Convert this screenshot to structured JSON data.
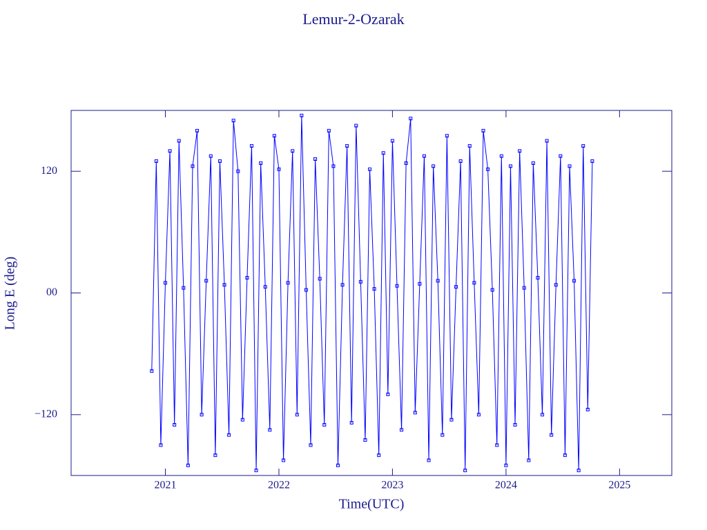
{
  "chart_data": {
    "type": "line",
    "title": "Lemur-2-Ozarak",
    "x_label": "Time(UTC)",
    "y_label": "Long E (deg)",
    "xlim": [
      2020.17,
      2025.46
    ],
    "ylim": [
      -180,
      180
    ],
    "xticks": [
      2021,
      2022,
      2023,
      2024,
      2025
    ],
    "yticks": [
      {
        "value": -120,
        "label": "−120"
      },
      {
        "value": 0,
        "label": "00"
      },
      120
    ],
    "markers": true,
    "series": [
      {
        "color": "#0000ff",
        "x": [
          2020.88,
          2020.92,
          2020.96,
          2021.0,
          2021.04,
          2021.08,
          2021.12,
          2021.16,
          2021.2,
          2021.24,
          2021.28,
          2021.32,
          2021.36,
          2021.4,
          2021.44,
          2021.48,
          2021.52,
          2021.56,
          2021.6,
          2021.64,
          2021.68,
          2021.72,
          2021.76,
          2021.8,
          2021.84,
          2021.88,
          2021.92,
          2021.96,
          2022.0,
          2022.04,
          2022.08,
          2022.12,
          2022.16,
          2022.2,
          2022.24,
          2022.28,
          2022.32,
          2022.36,
          2022.4,
          2022.44,
          2022.48,
          2022.52,
          2022.56,
          2022.6,
          2022.64,
          2022.68,
          2022.72,
          2022.76,
          2022.8,
          2022.84,
          2022.88,
          2022.92,
          2022.96,
          2023.0,
          2023.04,
          2023.08,
          2023.12,
          2023.16,
          2023.2,
          2023.24,
          2023.28,
          2023.32,
          2023.36,
          2023.4,
          2023.44,
          2023.48,
          2023.52,
          2023.56,
          2023.6,
          2023.64,
          2023.68,
          2023.72,
          2023.76,
          2023.8,
          2023.84,
          2023.88,
          2023.92,
          2023.96,
          2024.0,
          2024.04,
          2024.08,
          2024.12,
          2024.16,
          2024.2,
          2024.24,
          2024.28,
          2024.32,
          2024.36,
          2024.4,
          2024.44,
          2024.48,
          2024.52,
          2024.56,
          2024.6,
          2024.64,
          2024.68,
          2024.72,
          2024.76
        ],
        "values": [
          -77,
          130,
          -150,
          10,
          140,
          -130,
          150,
          5,
          -170,
          125,
          160,
          -120,
          12,
          135,
          -160,
          130,
          8,
          -140,
          170,
          120,
          -125,
          15,
          145,
          -175,
          128,
          6,
          -135,
          155,
          122,
          -165,
          10,
          140,
          -120,
          175,
          3,
          -150,
          132,
          14,
          -130,
          160,
          125,
          -170,
          8,
          145,
          -128,
          165,
          11,
          -145,
          122,
          4,
          -160,
          138,
          -100,
          150,
          7,
          -135,
          128,
          172,
          -118,
          9,
          135,
          -165,
          125,
          12,
          -140,
          155,
          -125,
          6,
          130,
          -175,
          145,
          10,
          -120,
          160,
          122,
          3,
          -150,
          135,
          -170,
          125,
          -130,
          140,
          5,
          -165,
          128,
          15,
          -120,
          150,
          -140,
          8,
          135,
          -160,
          125,
          12,
          -175,
          145,
          -115,
          130
        ]
      }
    ]
  }
}
